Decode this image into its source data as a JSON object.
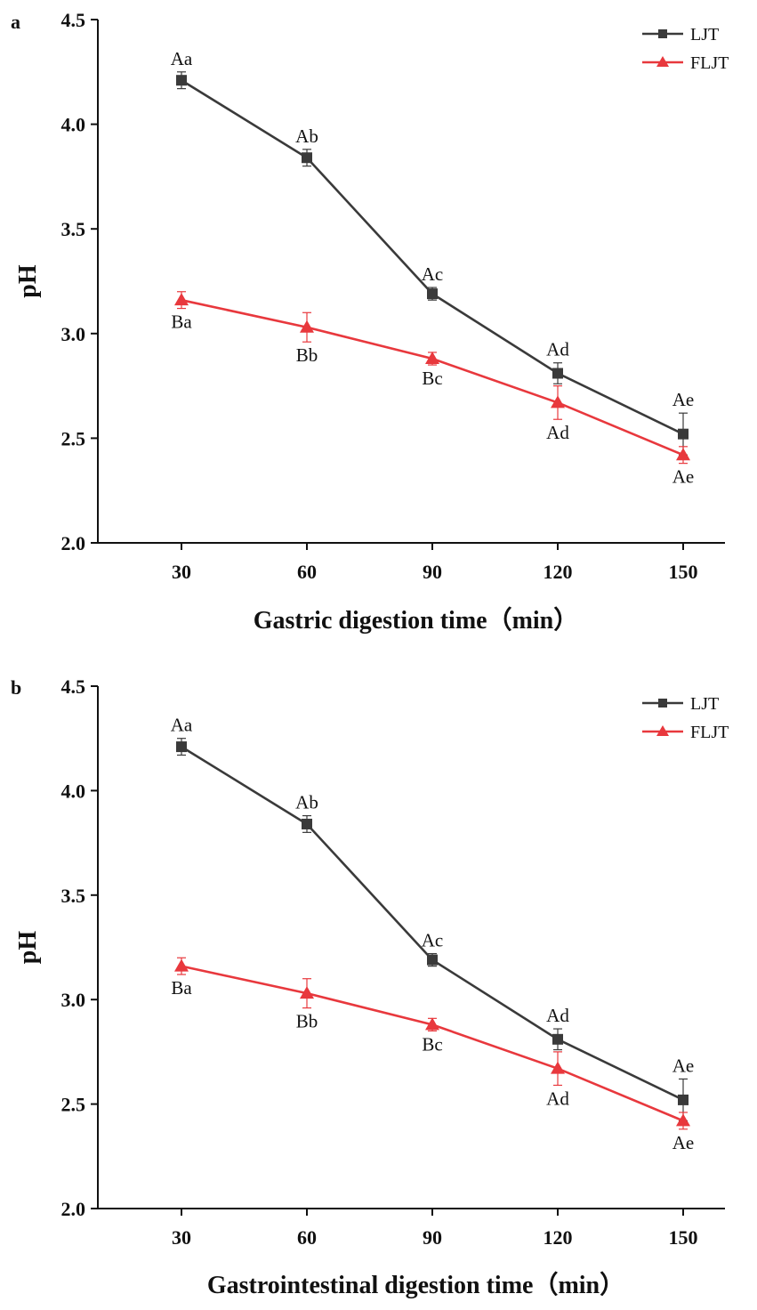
{
  "chart_data": [
    {
      "panel": "a",
      "type": "line",
      "xlabel": "Gastric digestion time（min）",
      "ylabel": "pH",
      "x": [
        30,
        60,
        90,
        120,
        150
      ],
      "xlim": [
        10,
        160
      ],
      "ylim": [
        2.0,
        4.5
      ],
      "yticks": [
        "2.0",
        "2.5",
        "3.0",
        "3.5",
        "4.0",
        "4.5"
      ],
      "xticks": [
        "30",
        "60",
        "90",
        "120",
        "150"
      ],
      "grid": false,
      "legend_position": "top-right",
      "series": [
        {
          "name": "LJT",
          "color": "#3a3a3a",
          "marker": "square",
          "values": [
            4.21,
            3.84,
            3.19,
            2.81,
            2.52
          ],
          "errors": [
            0.04,
            0.04,
            0.03,
            0.05,
            0.1
          ],
          "labels": [
            "Aa",
            "Ab",
            "Ac",
            "Ad",
            "Ae"
          ],
          "label_side": [
            "above",
            "above",
            "above",
            "above",
            "above"
          ]
        },
        {
          "name": "FLJT",
          "color": "#e8383d",
          "marker": "triangle",
          "values": [
            3.16,
            3.03,
            2.88,
            2.67,
            2.42
          ],
          "errors": [
            0.04,
            0.07,
            0.03,
            0.08,
            0.04
          ],
          "labels": [
            "Ba",
            "Bb",
            "Bc",
            "Ad",
            "Ae"
          ],
          "label_side": [
            "below",
            "below",
            "below",
            "below",
            "below"
          ]
        }
      ]
    },
    {
      "panel": "b",
      "type": "line",
      "xlabel": "Gastrointestinal digestion time（min）",
      "ylabel": "pH",
      "x": [
        30,
        60,
        90,
        120,
        150
      ],
      "xlim": [
        10,
        160
      ],
      "ylim": [
        2.0,
        4.5
      ],
      "yticks": [
        "2.0",
        "2.5",
        "3.0",
        "3.5",
        "4.0",
        "4.5"
      ],
      "xticks": [
        "30",
        "60",
        "90",
        "120",
        "150"
      ],
      "grid": false,
      "legend_position": "top-right",
      "series": [
        {
          "name": "LJT",
          "color": "#3a3a3a",
          "marker": "square",
          "values": [
            4.21,
            3.84,
            3.19,
            2.81,
            2.52
          ],
          "errors": [
            0.04,
            0.04,
            0.03,
            0.05,
            0.1
          ],
          "labels": [
            "Aa",
            "Ab",
            "Ac",
            "Ad",
            "Ae"
          ],
          "label_side": [
            "above",
            "above",
            "above",
            "above",
            "above"
          ]
        },
        {
          "name": "FLJT",
          "color": "#e8383d",
          "marker": "triangle",
          "values": [
            3.16,
            3.03,
            2.88,
            2.67,
            2.42
          ],
          "errors": [
            0.04,
            0.07,
            0.03,
            0.08,
            0.04
          ],
          "labels": [
            "Ba",
            "Bb",
            "Bc",
            "Ad",
            "Ae"
          ],
          "label_side": [
            "below",
            "below",
            "below",
            "below",
            "below"
          ]
        }
      ]
    }
  ]
}
